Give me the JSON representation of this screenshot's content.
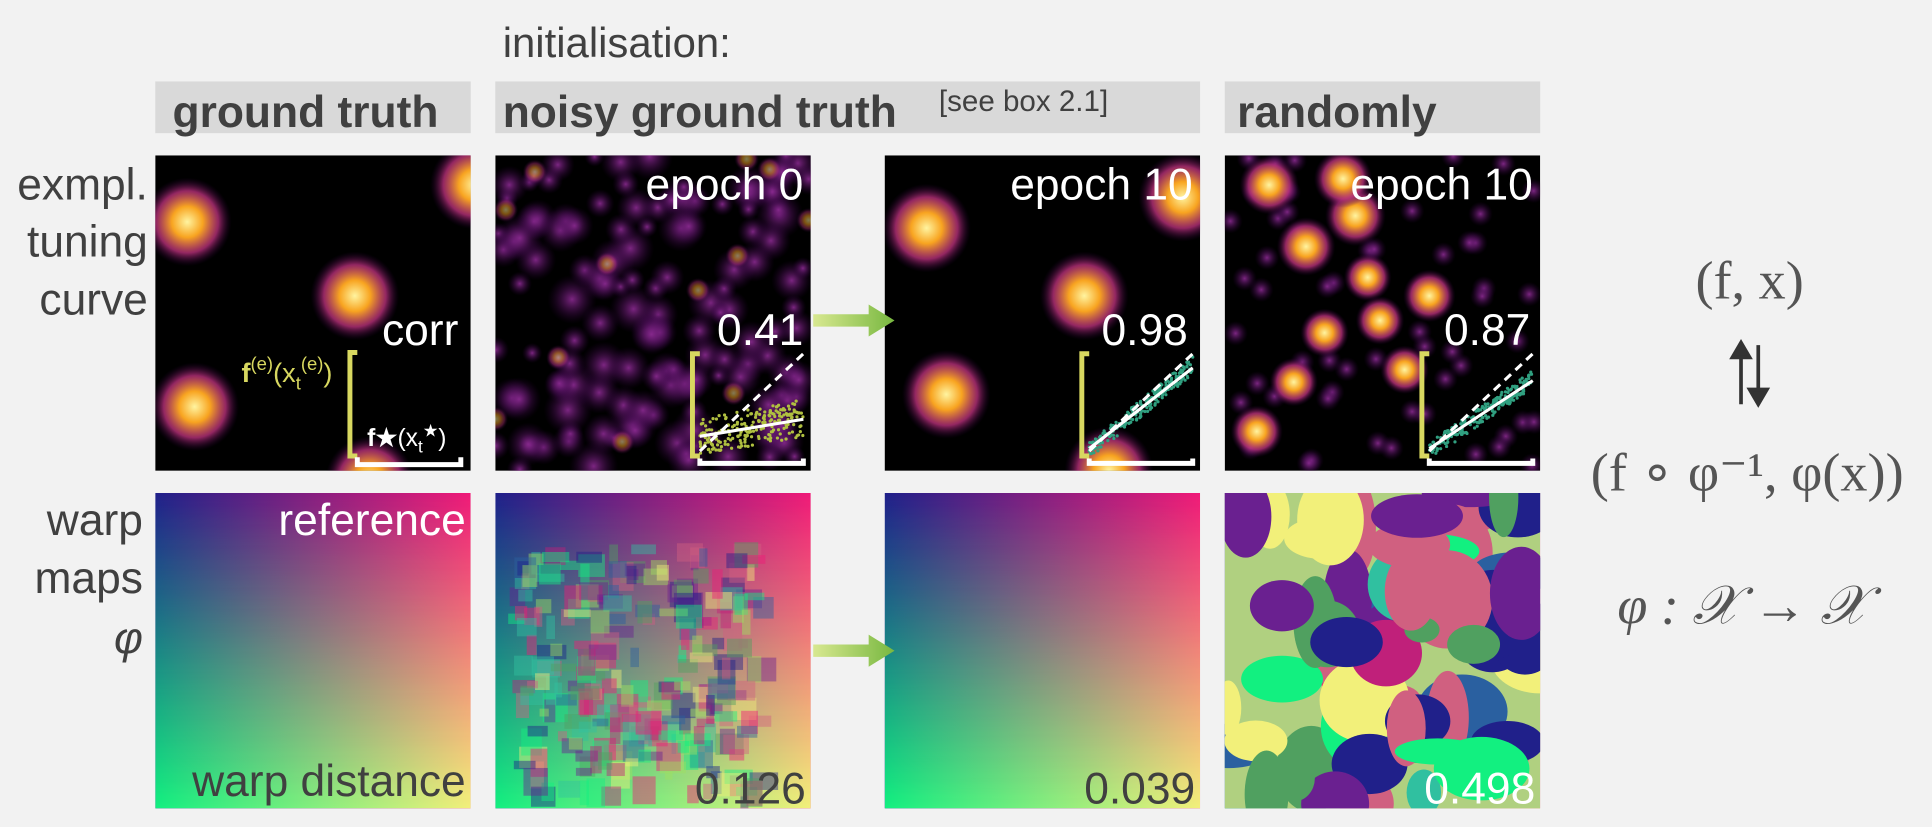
{
  "header": {
    "initialisation": "initialisation:",
    "columns": [
      "ground truth",
      "noisy ground truth",
      "randomly"
    ],
    "reference_note": "[see box 2.1]"
  },
  "row_labels": [
    [
      "exmpl.",
      "tuning",
      "curve"
    ],
    [
      "warp",
      "maps",
      "φ"
    ]
  ],
  "tuning": {
    "corr_label": "corr",
    "y_axis": {
      "f": "f",
      "sup": "(e)",
      "open": "(x",
      "sub": "t",
      "sup2": "(e)",
      "close": ")"
    },
    "x_axis": {
      "f": "f★",
      "open": "(x",
      "sub": "t",
      "sup": "★",
      "close": ")"
    },
    "panels": [
      {
        "epoch": "epoch 0",
        "corr": "0.41"
      },
      {
        "epoch": "epoch 10",
        "corr": "0.98"
      },
      {
        "epoch": "epoch 10",
        "corr": "0.87"
      }
    ]
  },
  "warp": {
    "reference": "reference",
    "distance_label": "warp distance",
    "distances": [
      "0.126",
      "0.039",
      "0.498"
    ]
  },
  "math": {
    "pair": "(f, x)",
    "warped": "(f ∘ φ⁻¹, φ(x))",
    "map": "φ : 𝒳 → 𝒳"
  }
}
